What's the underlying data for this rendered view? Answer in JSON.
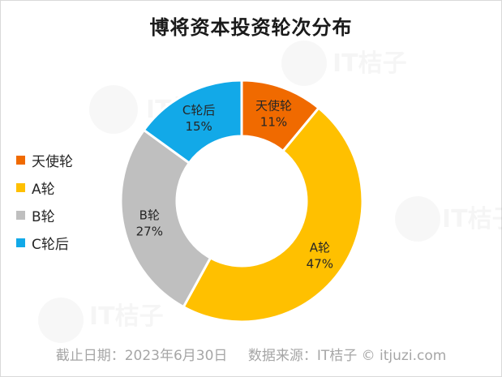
{
  "chart_data": {
    "type": "pie",
    "title": "博将资本投资轮次分布",
    "categories": [
      "天使轮",
      "A轮",
      "B轮",
      "C轮后"
    ],
    "values": [
      11,
      47,
      27,
      15
    ],
    "value_labels": [
      "11%",
      "47%",
      "27%",
      "15%"
    ],
    "colors": [
      "#F06A00",
      "#FFC000",
      "#BFBFBF",
      "#12A9E8"
    ],
    "legend": "left",
    "donut": true
  },
  "footer": {
    "date": "截止日期：2023年6月30日",
    "source": "数据来源：IT桔子 © itjuzi.com"
  },
  "watermark": {
    "brand": "IT桔子",
    "url": "ITJUZI.COM"
  }
}
